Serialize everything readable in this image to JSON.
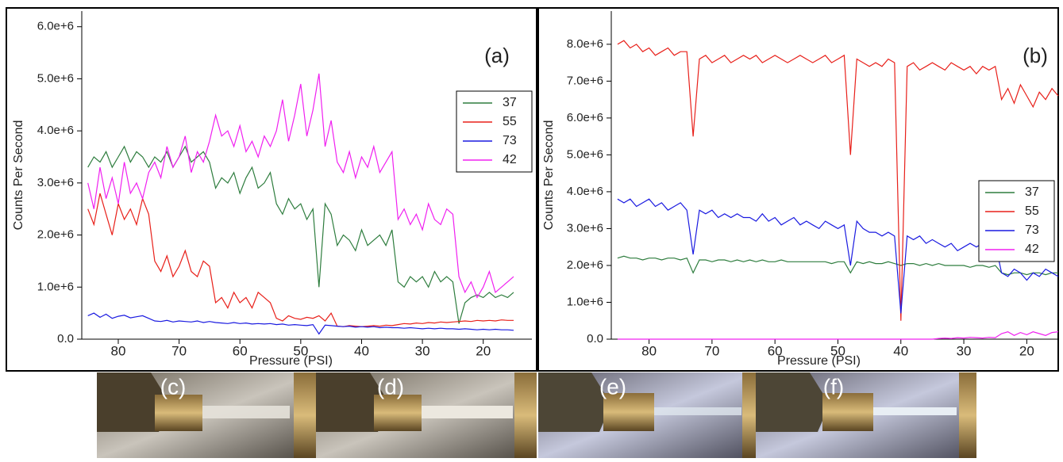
{
  "chart_data": [
    {
      "type": "line",
      "panel_label": "(a)",
      "x_label": "Pressure (PSI)",
      "y_label": "Counts Per Second",
      "xlim": [
        86,
        12
      ],
      "ylim": [
        0,
        6300000.0
      ],
      "xticks": [
        80,
        70,
        60,
        50,
        40,
        30,
        20
      ],
      "yticks": [
        {
          "value": 0,
          "label": "0.0"
        },
        {
          "value": 1000000.0,
          "label": "1.0e+6"
        },
        {
          "value": 2000000.0,
          "label": "2.0e+6"
        },
        {
          "value": 3000000.0,
          "label": "3.0e+6"
        },
        {
          "value": 4000000.0,
          "label": "4.0e+6"
        },
        {
          "value": 5000000.0,
          "label": "5.0e+6"
        },
        {
          "value": 6000000.0,
          "label": "6.0e+6"
        }
      ],
      "legend": "right",
      "x": [
        85,
        84,
        83,
        82,
        81,
        80,
        79,
        78,
        77,
        76,
        75,
        74,
        73,
        72,
        71,
        70,
        69,
        68,
        67,
        66,
        65,
        64,
        63,
        62,
        61,
        60,
        59,
        58,
        57,
        56,
        55,
        54,
        53,
        52,
        51,
        50,
        49,
        48,
        47,
        46,
        45,
        44,
        43,
        42,
        41,
        40,
        39,
        38,
        37,
        36,
        35,
        34,
        33,
        32,
        31,
        30,
        29,
        28,
        27,
        26,
        25,
        24,
        23,
        22,
        21,
        20,
        19,
        18,
        17,
        16,
        15
      ],
      "series": [
        {
          "name": "37",
          "color": "#2e7d3e",
          "values": [
            3300000.0,
            3500000.0,
            3400000.0,
            3600000.0,
            3300000.0,
            3500000.0,
            3700000.0,
            3400000.0,
            3600000.0,
            3500000.0,
            3300000.0,
            3500000.0,
            3400000.0,
            3600000.0,
            3300000.0,
            3500000.0,
            3700000.0,
            3400000.0,
            3500000.0,
            3600000.0,
            3400000.0,
            2900000.0,
            3100000.0,
            3000000.0,
            3200000.0,
            2800000.0,
            3100000.0,
            3300000.0,
            2900000.0,
            3000000.0,
            3200000.0,
            2600000.0,
            2400000.0,
            2700000.0,
            2500000.0,
            2600000.0,
            2300000.0,
            2500000.0,
            1000000.0,
            2600000.0,
            2400000.0,
            1800000.0,
            2000000.0,
            1900000.0,
            1700000.0,
            2100000.0,
            1800000.0,
            1900000.0,
            2000000.0,
            1800000.0,
            2100000.0,
            1100000.0,
            1000000.0,
            1200000.0,
            1100000.0,
            1200000.0,
            1000000.0,
            1300000.0,
            1100000.0,
            1200000.0,
            1100000.0,
            300000.0,
            700000.0,
            800000.0,
            850000.0,
            800000.0,
            900000.0,
            800000.0,
            850000.0,
            800000.0,
            900000.0
          ]
        },
        {
          "name": "55",
          "color": "#e8201a",
          "values": [
            2500000.0,
            2200000.0,
            2800000.0,
            2400000.0,
            2000000.0,
            2600000.0,
            2300000.0,
            2500000.0,
            2200000.0,
            2700000.0,
            2400000.0,
            1500000.0,
            1300000.0,
            1600000.0,
            1200000.0,
            1400000.0,
            1700000.0,
            1300000.0,
            1200000.0,
            1500000.0,
            1400000.0,
            700000.0,
            800000.0,
            600000.0,
            900000.0,
            700000.0,
            800000.0,
            600000.0,
            900000.0,
            800000.0,
            700000.0,
            400000.0,
            350000.0,
            450000.0,
            400000.0,
            380000.0,
            420000.0,
            400000.0,
            450000.0,
            350000.0,
            500000.0,
            250000.0,
            240000.0,
            260000.0,
            250000.0,
            240000.0,
            250000.0,
            260000.0,
            250000.0,
            270000.0,
            260000.0,
            280000.0,
            300000.0,
            290000.0,
            310000.0,
            300000.0,
            320000.0,
            310000.0,
            330000.0,
            320000.0,
            330000.0,
            340000.0,
            350000.0,
            340000.0,
            360000.0,
            350000.0,
            360000.0,
            350000.0,
            370000.0,
            360000.0,
            360000.0
          ]
        },
        {
          "name": "73",
          "color": "#1a1ae0",
          "values": [
            450000.0,
            500000.0,
            420000.0,
            480000.0,
            400000.0,
            440000.0,
            460000.0,
            410000.0,
            430000.0,
            450000.0,
            400000.0,
            350000.0,
            340000.0,
            360000.0,
            330000.0,
            350000.0,
            340000.0,
            330000.0,
            350000.0,
            320000.0,
            340000.0,
            320000.0,
            310000.0,
            300000.0,
            320000.0,
            300000.0,
            310000.0,
            290000.0,
            300000.0,
            290000.0,
            300000.0,
            280000.0,
            290000.0,
            270000.0,
            280000.0,
            270000.0,
            260000.0,
            280000.0,
            100000.0,
            270000.0,
            260000.0,
            250000.0,
            240000.0,
            250000.0,
            230000.0,
            240000.0,
            230000.0,
            240000.0,
            220000.0,
            230000.0,
            220000.0,
            220000.0,
            210000.0,
            220000.0,
            210000.0,
            200000.0,
            210000.0,
            200000.0,
            210000.0,
            200000.0,
            200000.0,
            190000.0,
            200000.0,
            190000.0,
            180000.0,
            190000.0,
            180000.0,
            190000.0,
            180000.0,
            180000.0,
            170000.0
          ]
        },
        {
          "name": "42",
          "color": "#f020f0",
          "values": [
            3000000.0,
            2500000.0,
            3300000.0,
            2700000.0,
            3100000.0,
            2600000.0,
            3400000.0,
            2800000.0,
            3000000.0,
            2700000.0,
            3200000.0,
            3400000.0,
            3100000.0,
            3700000.0,
            3300000.0,
            3500000.0,
            3900000.0,
            3200000.0,
            3600000.0,
            3400000.0,
            3800000.0,
            4300000.0,
            3900000.0,
            4000000.0,
            3700000.0,
            4100000.0,
            3600000.0,
            3800000.0,
            3500000.0,
            3900000.0,
            3700000.0,
            4000000.0,
            4600000.0,
            3800000.0,
            4300000.0,
            4900000.0,
            3900000.0,
            4400000.0,
            5100000.0,
            3700000.0,
            4200000.0,
            3400000.0,
            3200000.0,
            3600000.0,
            3100000.0,
            3500000.0,
            3300000.0,
            3700000.0,
            3200000.0,
            3400000.0,
            3600000.0,
            2300000.0,
            2500000.0,
            2200000.0,
            2400000.0,
            2100000.0,
            2600000.0,
            2300000.0,
            2200000.0,
            2500000.0,
            2400000.0,
            1200000.0,
            900000.0,
            1100000.0,
            800000.0,
            1000000.0,
            1300000.0,
            900000.0,
            1000000.0,
            1100000.0,
            1200000.0
          ]
        }
      ]
    },
    {
      "type": "line",
      "panel_label": "(b)",
      "x_label": "Pressure (PSI)",
      "y_label": "Counts Per Second",
      "xlim": [
        86,
        15
      ],
      "ylim": [
        0,
        8900000.0
      ],
      "xticks": [
        80,
        70,
        60,
        50,
        40,
        30,
        20
      ],
      "yticks": [
        {
          "value": 0,
          "label": "0.0"
        },
        {
          "value": 1000000.0,
          "label": "1.0e+6"
        },
        {
          "value": 2000000.0,
          "label": "2.0e+6"
        },
        {
          "value": 3000000.0,
          "label": "3.0e+6"
        },
        {
          "value": 4000000.0,
          "label": "4.0e+6"
        },
        {
          "value": 5000000.0,
          "label": "5.0e+6"
        },
        {
          "value": 6000000.0,
          "label": "6.0e+6"
        },
        {
          "value": 7000000.0,
          "label": "7.0e+6"
        },
        {
          "value": 8000000.0,
          "label": "8.0e+6"
        }
      ],
      "legend": "right",
      "x": [
        85,
        84,
        83,
        82,
        81,
        80,
        79,
        78,
        77,
        76,
        75,
        74,
        73,
        72,
        71,
        70,
        69,
        68,
        67,
        66,
        65,
        64,
        63,
        62,
        61,
        60,
        59,
        58,
        57,
        56,
        55,
        54,
        53,
        52,
        51,
        50,
        49,
        48,
        47,
        46,
        45,
        44,
        43,
        42,
        41,
        40,
        39,
        38,
        37,
        36,
        35,
        34,
        33,
        32,
        31,
        30,
        29,
        28,
        27,
        26,
        25,
        24,
        23,
        22,
        21,
        20,
        19,
        18,
        17,
        16,
        15
      ],
      "series": [
        {
          "name": "37",
          "color": "#2e7d3e",
          "values": [
            2200000.0,
            2250000.0,
            2200000.0,
            2200000.0,
            2150000.0,
            2200000.0,
            2200000.0,
            2150000.0,
            2200000.0,
            2200000.0,
            2150000.0,
            2200000.0,
            1800000.0,
            2150000.0,
            2150000.0,
            2100000.0,
            2150000.0,
            2150000.0,
            2100000.0,
            2150000.0,
            2100000.0,
            2150000.0,
            2100000.0,
            2150000.0,
            2100000.0,
            2100000.0,
            2150000.0,
            2100000.0,
            2100000.0,
            2100000.0,
            2100000.0,
            2100000.0,
            2100000.0,
            2100000.0,
            2050000.0,
            2100000.0,
            2100000.0,
            1800000.0,
            2100000.0,
            2050000.0,
            2100000.0,
            2050000.0,
            2050000.0,
            2100000.0,
            2050000.0,
            2000000.0,
            2050000.0,
            2050000.0,
            2000000.0,
            2050000.0,
            2000000.0,
            2050000.0,
            2000000.0,
            2000000.0,
            2000000.0,
            2000000.0,
            1950000.0,
            2000000.0,
            2000000.0,
            1950000.0,
            2000000.0,
            1800000.0,
            1750000.0,
            1800000.0,
            1800000.0,
            1750000.0,
            1800000.0,
            1800000.0,
            1750000.0,
            1800000.0,
            1800000.0
          ]
        },
        {
          "name": "55",
          "color": "#e8201a",
          "values": [
            8000000.0,
            8100000.0,
            7900000.0,
            8000000.0,
            7800000.0,
            7900000.0,
            7700000.0,
            7800000.0,
            7900000.0,
            7700000.0,
            7800000.0,
            7800000.0,
            5500000.0,
            7600000.0,
            7700000.0,
            7500000.0,
            7600000.0,
            7700000.0,
            7500000.0,
            7600000.0,
            7700000.0,
            7600000.0,
            7700000.0,
            7500000.0,
            7600000.0,
            7700000.0,
            7600000.0,
            7500000.0,
            7600000.0,
            7700000.0,
            7600000.0,
            7500000.0,
            7600000.0,
            7700000.0,
            7500000.0,
            7600000.0,
            7700000.0,
            5000000.0,
            7600000.0,
            7500000.0,
            7400000.0,
            7500000.0,
            7400000.0,
            7600000.0,
            7500000.0,
            500000.0,
            7400000.0,
            7500000.0,
            7300000.0,
            7400000.0,
            7500000.0,
            7400000.0,
            7300000.0,
            7500000.0,
            7400000.0,
            7300000.0,
            7400000.0,
            7200000.0,
            7400000.0,
            7300000.0,
            7400000.0,
            6500000.0,
            6800000.0,
            6400000.0,
            6900000.0,
            6600000.0,
            6300000.0,
            6700000.0,
            6500000.0,
            6800000.0,
            6600000.0
          ]
        },
        {
          "name": "73",
          "color": "#1a1ae0",
          "values": [
            3800000.0,
            3700000.0,
            3800000.0,
            3600000.0,
            3700000.0,
            3800000.0,
            3600000.0,
            3700000.0,
            3500000.0,
            3600000.0,
            3700000.0,
            3500000.0,
            2300000.0,
            3500000.0,
            3400000.0,
            3500000.0,
            3300000.0,
            3400000.0,
            3300000.0,
            3400000.0,
            3300000.0,
            3300000.0,
            3200000.0,
            3400000.0,
            3200000.0,
            3300000.0,
            3100000.0,
            3200000.0,
            3300000.0,
            3100000.0,
            3200000.0,
            3100000.0,
            3000000.0,
            3200000.0,
            3100000.0,
            3000000.0,
            3100000.0,
            2000000.0,
            3200000.0,
            3000000.0,
            2900000.0,
            2900000.0,
            2800000.0,
            2900000.0,
            2800000.0,
            700000.0,
            2800000.0,
            2700000.0,
            2800000.0,
            2600000.0,
            2700000.0,
            2600000.0,
            2500000.0,
            2600000.0,
            2400000.0,
            2500000.0,
            2600000.0,
            2500000.0,
            2600000.0,
            2500000.0,
            2600000.0,
            1800000.0,
            1700000.0,
            1900000.0,
            1800000.0,
            1600000.0,
            1800000.0,
            1700000.0,
            1900000.0,
            1800000.0,
            1700000.0
          ]
        },
        {
          "name": "42",
          "color": "#f020f0",
          "values": [
            0,
            0,
            0,
            0,
            0,
            0,
            0,
            0,
            0,
            0,
            0,
            0,
            0,
            0,
            0,
            0,
            0,
            0,
            0,
            0,
            0,
            0,
            0,
            0,
            0,
            0,
            0,
            0,
            0,
            0,
            0,
            0,
            0,
            0,
            0,
            0,
            0,
            0,
            0,
            0,
            0,
            0,
            0,
            0,
            0,
            0,
            0,
            0,
            0,
            0,
            0,
            20000.0,
            30000.0,
            20000.0,
            40000.0,
            30000.0,
            50000.0,
            40000.0,
            30000.0,
            50000.0,
            40000.0,
            150000.0,
            200000.0,
            100000.0,
            180000.0,
            120000.0,
            200000.0,
            150000.0,
            100000.0,
            180000.0,
            200000.0
          ]
        }
      ]
    }
  ],
  "photos": {
    "labels": [
      "(c)",
      "(d)",
      "(e)",
      "(f)"
    ]
  }
}
